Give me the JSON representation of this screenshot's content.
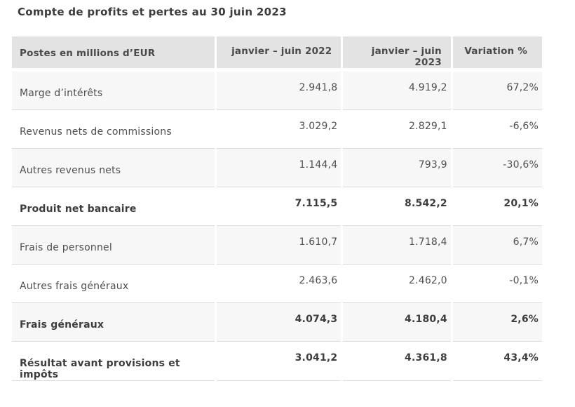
{
  "title": "Compte de profits et pertes au 30 juin 2023",
  "table": {
    "columns": {
      "label": "Postes en millions d’EUR",
      "period_2022": "janvier – juin 2022",
      "period_2023": "janvier – juin 2023",
      "variation": "Variation %"
    },
    "rows": [
      {
        "label": "Marge d’intérêts",
        "v2022": "2.941,8",
        "v2023": "4.919,2",
        "variation": "67,2%",
        "bold": false
      },
      {
        "label": "Revenus nets de commissions",
        "v2022": "3.029,2",
        "v2023": "2.829,1",
        "variation": "-6,6%",
        "bold": false
      },
      {
        "label": "Autres revenus nets",
        "v2022": "1.144,4",
        "v2023": "793,9",
        "variation": "-30,6%",
        "bold": false
      },
      {
        "label": "Produit net bancaire",
        "v2022": "7.115,5",
        "v2023": "8.542,2",
        "variation": "20,1%",
        "bold": true
      },
      {
        "label": "Frais de personnel",
        "v2022": "1.610,7",
        "v2023": "1.718,4",
        "variation": "6,7%",
        "bold": false
      },
      {
        "label": "Autres frais généraux",
        "v2022": "2.463,6",
        "v2023": "2.462,0",
        "variation": "-0,1%",
        "bold": false
      },
      {
        "label": "Frais généraux",
        "v2022": "4.074,3",
        "v2023": "4.180,4",
        "variation": "2,6%",
        "bold": true
      },
      {
        "label": "Résultat avant provisions et impôts",
        "v2022": "3.041,2",
        "v2023": "4.361,8",
        "variation": "43,4%",
        "bold": true
      }
    ]
  },
  "chart_data": {
    "type": "table",
    "title": "Compte de profits et pertes au 30 juin 2023",
    "categories": [
      "Marge d’intérêts",
      "Revenus nets de commissions",
      "Autres revenus nets",
      "Produit net bancaire",
      "Frais de personnel",
      "Autres frais généraux",
      "Frais généraux",
      "Résultat avant provisions et impôts"
    ],
    "series": [
      {
        "name": "janvier – juin 2022",
        "values": [
          2941.8,
          3029.2,
          1144.4,
          7115.5,
          1610.7,
          2463.6,
          4074.3,
          3041.2
        ]
      },
      {
        "name": "janvier – juin 2023",
        "values": [
          4919.2,
          2829.1,
          793.9,
          8542.2,
          1718.4,
          2462.0,
          4180.4,
          4361.8
        ]
      },
      {
        "name": "Variation %",
        "values": [
          67.2,
          -6.6,
          -30.6,
          20.1,
          6.7,
          -0.1,
          2.6,
          43.4
        ]
      }
    ],
    "unit": "millions d’EUR"
  },
  "colors": {
    "header_bg": "#e3e3e3",
    "row_alt_bg": "#f7f7f7",
    "row_bg": "#ffffff",
    "row_border": "#dcdcdc",
    "text": "#4f4f4f",
    "bold_text": "#3d3d3d",
    "title_text": "#3c3c3c"
  }
}
